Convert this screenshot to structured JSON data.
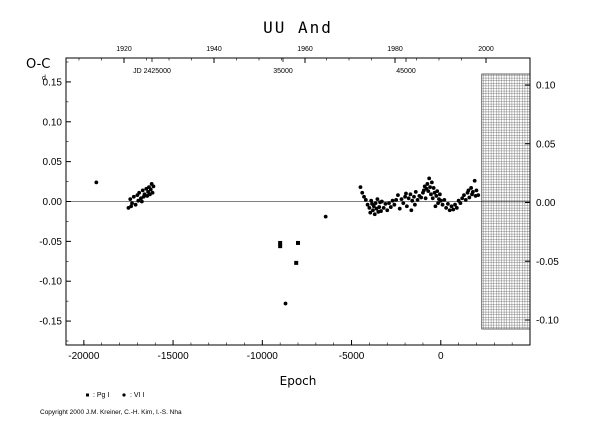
{
  "chart_data": {
    "type": "scatter",
    "title": "UU And",
    "xlabel": "Epoch",
    "ylabel": "O-C",
    "ylabel_unit": "d",
    "xlim": [
      -21000,
      5000
    ],
    "ylim": [
      -0.18,
      0.18
    ],
    "x_ticks": [
      -20000,
      -15000,
      -10000,
      -5000,
      0
    ],
    "y_ticks": [
      "0.15",
      "0.10",
      "0.05",
      "0.00",
      "-0.05",
      "-0.10",
      "-0.15"
    ],
    "y_right_ticks": [
      "0.10",
      "0.05",
      "0.00",
      "-0.05",
      "-0.10"
    ],
    "top_axis": {
      "years": [
        "1920",
        "1940",
        "1960",
        "1980",
        "2000"
      ],
      "jd_labels": [
        "JD 2425000",
        "35000",
        "45000"
      ]
    },
    "legend": [
      "Pg I",
      "VI I"
    ],
    "grid": false,
    "hatched_region": {
      "x_from": 2300,
      "x_to": 5000
    },
    "series": [
      {
        "name": "Pg I",
        "marker": "square",
        "points": [
          [
            -9000,
            -0.052
          ],
          [
            -9000,
            -0.056
          ],
          [
            -8000,
            -0.052
          ],
          [
            -8100,
            -0.077
          ]
        ]
      },
      {
        "name": "VI I",
        "marker": "circle",
        "points": [
          [
            -19300,
            0.024
          ],
          [
            -8700,
            -0.128
          ],
          [
            -6450,
            -0.019
          ],
          [
            -17500,
            -0.008
          ],
          [
            -17400,
            0.003
          ],
          [
            -17300,
            -0.002
          ],
          [
            -17200,
            0.006
          ],
          [
            -17100,
            -0.004
          ],
          [
            -17000,
            0.008
          ],
          [
            -16950,
            0.001
          ],
          [
            -16900,
            0.011
          ],
          [
            -16800,
            0.004
          ],
          [
            -16700,
            0.014
          ],
          [
            -16650,
            0.006
          ],
          [
            -16600,
            0.009
          ],
          [
            -16500,
            0.016
          ],
          [
            -16450,
            0.007
          ],
          [
            -16400,
            0.012
          ],
          [
            -16350,
            0.018
          ],
          [
            -16300,
            0.009
          ],
          [
            -16250,
            0.015
          ],
          [
            -16200,
            0.022
          ],
          [
            -16150,
            0.011
          ],
          [
            -16100,
            0.019
          ],
          [
            -17350,
            -0.006
          ],
          [
            -16750,
            0.0
          ],
          [
            -4500,
            0.018
          ],
          [
            -4400,
            0.011
          ],
          [
            -4300,
            0.006
          ],
          [
            -4200,
            0.002
          ],
          [
            -4100,
            -0.004
          ],
          [
            -4000,
            -0.008
          ],
          [
            -3950,
            -0.014
          ],
          [
            -3900,
            0.001
          ],
          [
            -3850,
            -0.003
          ],
          [
            -3800,
            -0.011
          ],
          [
            -3750,
            -0.006
          ],
          [
            -3700,
            -0.016
          ],
          [
            -3650,
            -0.002
          ],
          [
            -3600,
            -0.009
          ],
          [
            -3550,
            0.003
          ],
          [
            -3500,
            -0.013
          ],
          [
            -3450,
            -0.007
          ],
          [
            -3400,
            -0.001
          ],
          [
            -3350,
            -0.012
          ],
          [
            -3300,
            0.0
          ],
          [
            -3200,
            -0.008
          ],
          [
            -3100,
            -0.003
          ],
          [
            -3000,
            -0.011
          ],
          [
            -2900,
            -0.002
          ],
          [
            -2800,
            -0.007
          ],
          [
            -2700,
            0.001
          ],
          [
            -2600,
            -0.004
          ],
          [
            -2500,
            0.002
          ],
          [
            -2400,
            0.008
          ],
          [
            -2300,
            -0.009
          ],
          [
            -2200,
            0.003
          ],
          [
            -2100,
            -0.002
          ],
          [
            -2000,
            0.006
          ],
          [
            -1950,
            0.01
          ],
          [
            -1900,
            -0.006
          ],
          [
            -1800,
            0.004
          ],
          [
            -1700,
            0.009
          ],
          [
            -1650,
            -0.011
          ],
          [
            -1600,
            0.001
          ],
          [
            -1500,
            0.006
          ],
          [
            -1450,
            -0.004
          ],
          [
            -1400,
            0.012
          ],
          [
            -1300,
            0.002
          ],
          [
            -1200,
            0.007
          ],
          [
            -1100,
            0.005
          ],
          [
            -1000,
            0.011
          ],
          [
            -950,
            0.014
          ],
          [
            -900,
            0.019
          ],
          [
            -850,
            0.004
          ],
          [
            -800,
            0.016
          ],
          [
            -750,
            0.022
          ],
          [
            -700,
            0.013
          ],
          [
            -650,
            0.029
          ],
          [
            -600,
            0.018
          ],
          [
            -550,
            0.009
          ],
          [
            -500,
            0.024
          ],
          [
            -450,
            0.004
          ],
          [
            -400,
            0.017
          ],
          [
            -350,
            0.011
          ],
          [
            -300,
            -0.006
          ],
          [
            -250,
            0.007
          ],
          [
            -200,
            0.013
          ],
          [
            -150,
            -0.002
          ],
          [
            -100,
            0.003
          ],
          [
            -50,
            0.009
          ],
          [
            0,
            0.001
          ],
          [
            100,
            -0.004
          ],
          [
            200,
            0.002
          ],
          [
            300,
            -0.008
          ],
          [
            400,
            -0.003
          ],
          [
            500,
            -0.011
          ],
          [
            600,
            -0.006
          ],
          [
            700,
            -0.01
          ],
          [
            800,
            -0.004
          ],
          [
            900,
            -0.008
          ],
          [
            1000,
            0.001
          ],
          [
            1100,
            -0.002
          ],
          [
            1200,
            0.004
          ],
          [
            1300,
            0.008
          ],
          [
            1400,
            0.002
          ],
          [
            1500,
            0.011
          ],
          [
            1550,
            0.014
          ],
          [
            1600,
            0.005
          ],
          [
            1700,
            0.017
          ],
          [
            1750,
            0.009
          ],
          [
            1800,
            0.012
          ],
          [
            1900,
            0.026
          ],
          [
            1950,
            0.007
          ],
          [
            2000,
            0.014
          ],
          [
            2100,
            0.008
          ]
        ]
      }
    ]
  },
  "footer": {
    "copyright": "Copyright 2000 J.M. Kreiner, C.-H. Kim, I.-S. Nha"
  }
}
